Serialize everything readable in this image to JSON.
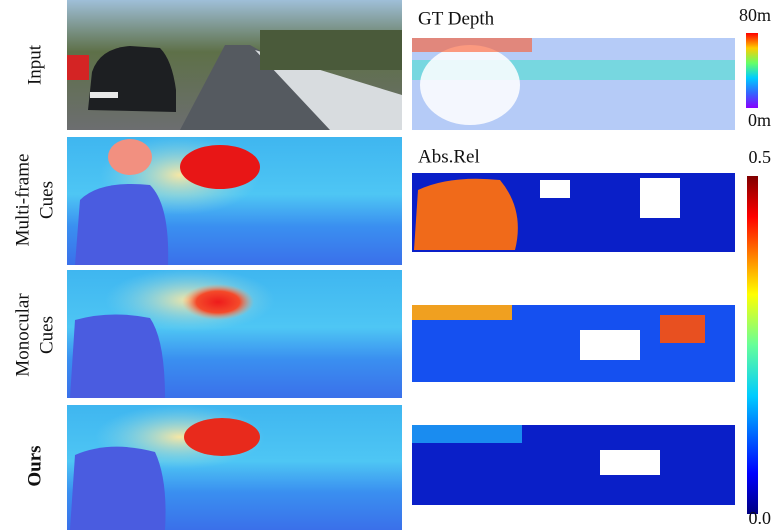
{
  "rows": [
    {
      "label_lines": [
        "Input"
      ]
    },
    {
      "label_lines": [
        "Multi-frame",
        "Cues"
      ]
    },
    {
      "label_lines": [
        "Monocular",
        "Cues"
      ]
    },
    {
      "label_lines": [
        "Ours"
      ]
    }
  ],
  "panels": {
    "depth_title": "GT Depth",
    "error_title": "Abs.Rel"
  },
  "colorbars": {
    "depth": {
      "top": "80m",
      "bottom": "0m"
    },
    "error": {
      "top": "0.5",
      "bottom": "0.0"
    }
  }
}
